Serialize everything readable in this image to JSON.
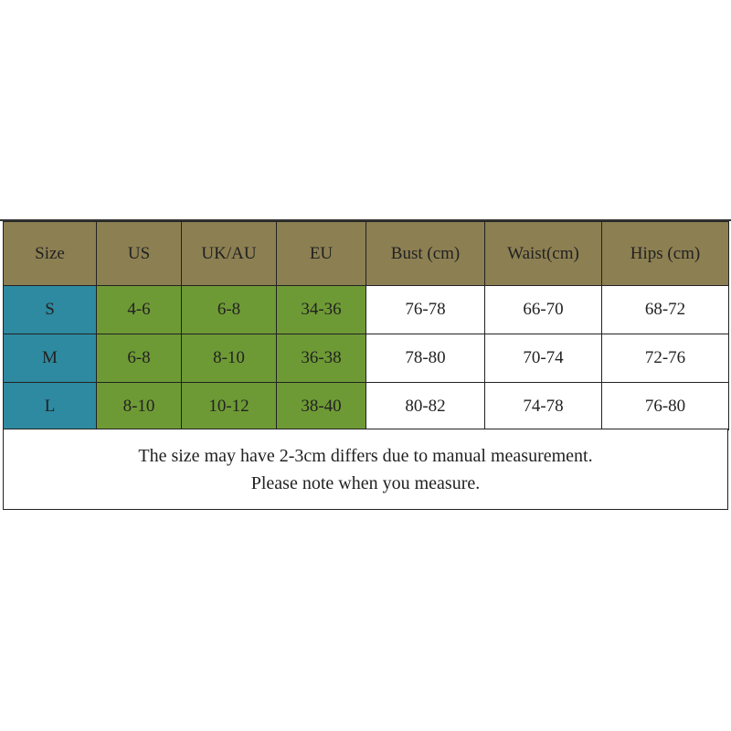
{
  "table": {
    "header": [
      "Size",
      "US",
      "UK/AU",
      "EU",
      "Bust (cm)",
      "Waist(cm)",
      "Hips (cm)"
    ],
    "rows": [
      [
        "S",
        "4-6",
        "6-8",
        "34-36",
        "76-78",
        "66-70",
        "68-72"
      ],
      [
        "M",
        "6-8",
        "8-10",
        "36-38",
        "78-80",
        "70-74",
        "72-76"
      ],
      [
        "L",
        "8-10",
        "10-12",
        "38-40",
        "80-82",
        "74-78",
        "76-80"
      ]
    ],
    "note": [
      "The size may have 2-3cm differs due to manual measurement.",
      "Please note when you measure."
    ]
  }
}
